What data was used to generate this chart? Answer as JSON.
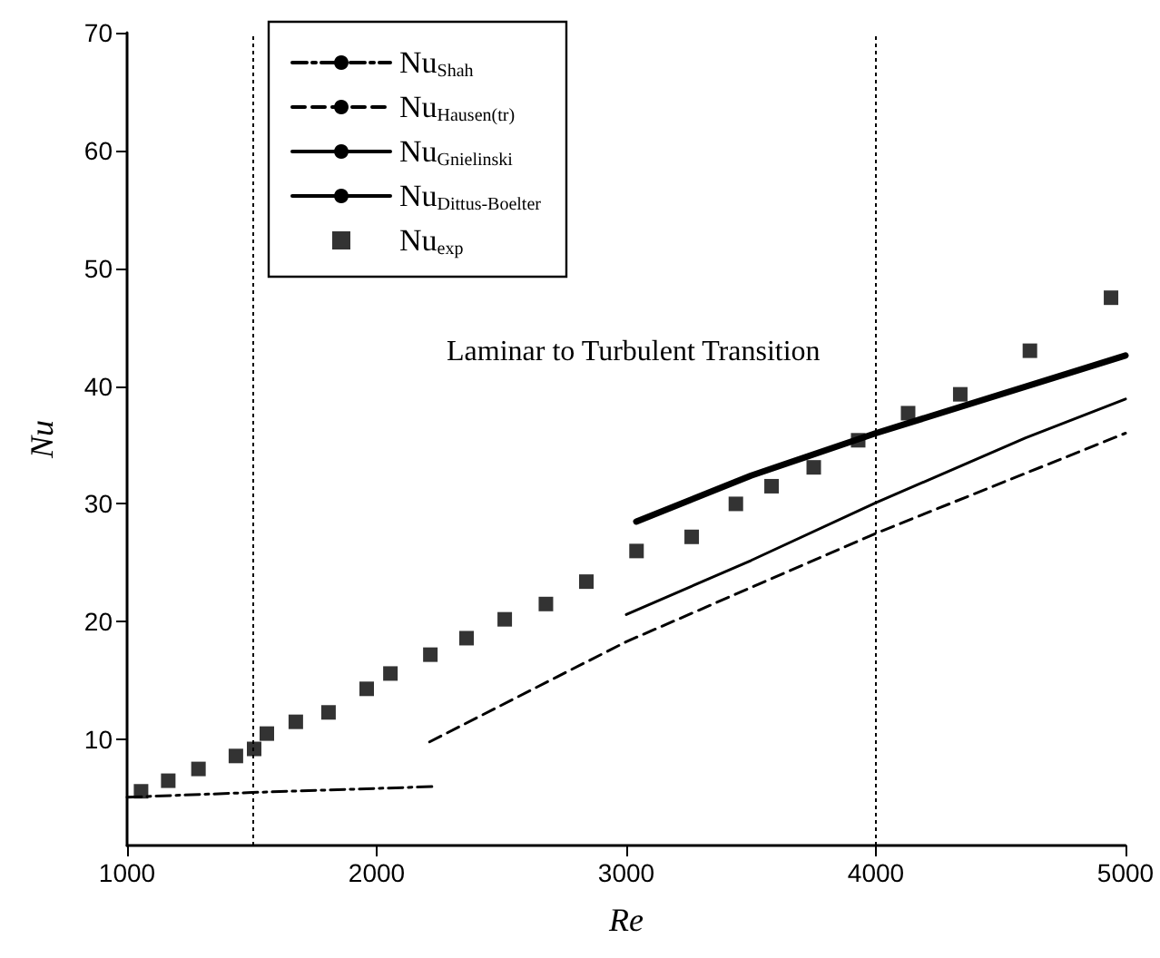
{
  "chart_data": {
    "type": "line",
    "xlabel": "Re",
    "ylabel": "Nu",
    "xlim": [
      1000,
      5000
    ],
    "xticks": [
      1000,
      2000,
      3000,
      4000,
      5000
    ],
    "ylim": [
      1,
      70
    ],
    "yticks": [
      10,
      20,
      30,
      40,
      50,
      60,
      70
    ],
    "grid": false,
    "legend": "top left",
    "annotations": [
      "Laminar to Turbulent Transition"
    ],
    "ref_lines": [
      {
        "axis": "x",
        "value": 1500,
        "color": "#000000",
        "line_style": "dotted"
      },
      {
        "axis": "x",
        "value": 4000,
        "color": "#000000",
        "line_style": "dotted"
      }
    ],
    "series": [
      {
        "name": "Nu$_{Shah}$",
        "line_style": "dashdot",
        "marker": "none",
        "color": "#000000",
        "x": [
          1000,
          1500,
          2224
        ],
        "values": [
          5.1,
          5.5,
          6.0
        ]
      },
      {
        "name": "Nu$_{Hausen(tr)}$",
        "line_style": "dashed",
        "marker": "none",
        "color": "#000000",
        "x": [
          2212,
          2721,
          3000,
          4000,
          5000
        ],
        "values": [
          9.8,
          15.3,
          18.3,
          27.5,
          36.0
        ]
      },
      {
        "name": "Nu$_{Gnielinski}$",
        "line_style": "solid",
        "marker": "none",
        "color": "#000000",
        "x": [
          3000,
          3500,
          4000,
          4600,
          5000
        ],
        "values": [
          20.6,
          25.2,
          30.1,
          35.6,
          38.9
        ]
      },
      {
        "name": "Nu$_{Dittus-Boelter}$",
        "line_style": "solid",
        "marker": "none",
        "color": "#000000",
        "x": [
          3040,
          3500,
          4000,
          5000
        ],
        "values": [
          28.5,
          32.4,
          36.0,
          42.6
        ]
      },
      {
        "name": "Nu$_{exp}$",
        "type": "scatter",
        "marker": "square",
        "color": "#000000",
        "x": [
          1056,
          1165,
          1286,
          1436,
          1509,
          1560,
          1676,
          1807,
          1960,
          2055,
          2215,
          2360,
          2513,
          2678,
          2840,
          3041,
          3262,
          3439,
          3582,
          3751,
          3929,
          4129,
          4338,
          4617,
          4942
        ],
        "values": [
          5.6,
          6.5,
          7.5,
          8.6,
          9.2,
          10.5,
          11.5,
          12.3,
          14.3,
          15.6,
          17.2,
          18.6,
          20.2,
          21.5,
          23.4,
          26.0,
          27.2,
          30.0,
          31.5,
          33.1,
          35.4,
          37.7,
          39.3,
          43.0,
          47.5
        ]
      }
    ]
  }
}
